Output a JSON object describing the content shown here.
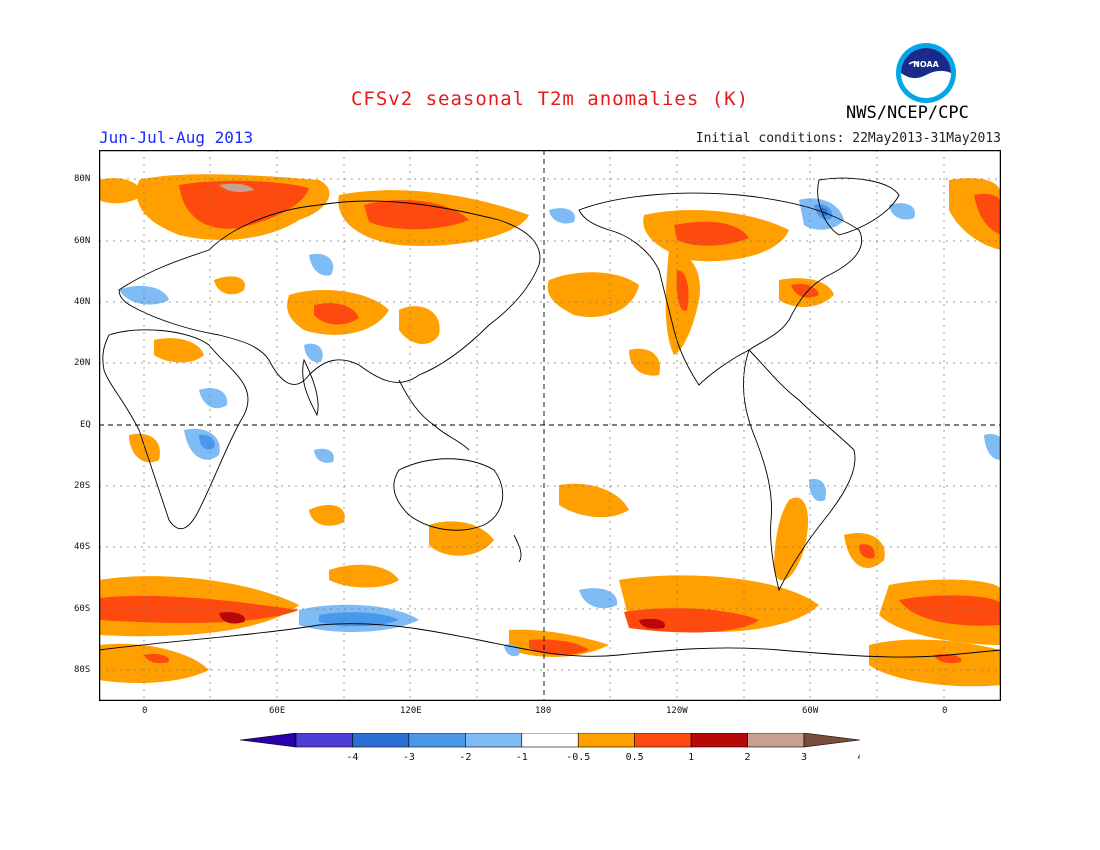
{
  "title": "CFSv2 seasonal T2m anomalies (K)",
  "period": "Jun-Jul-Aug 2013",
  "initial_conditions": "Initial conditions: 22May2013-31May2013",
  "agency": "NWS/NCEP/CPC",
  "logo_text": "NOAA",
  "lat_ticks": [
    "80N",
    "60N",
    "40N",
    "20N",
    "EQ",
    "20S",
    "40S",
    "60S",
    "80S"
  ],
  "lon_ticks": [
    "0",
    "60E",
    "120E",
    "180",
    "120W",
    "60W",
    "0"
  ],
  "colorbar": {
    "labels": [
      "-4",
      "-3",
      "-2",
      "-1",
      "-0.5",
      "0.5",
      "1",
      "2",
      "3",
      "4"
    ],
    "colors": [
      "#2a00a8",
      "#4f3ed6",
      "#2b6fd6",
      "#4a98ea",
      "#7fbbf5",
      "#ffffff",
      "#ffa000",
      "#ff4a0f",
      "#b80707",
      "#c8a08f",
      "#7a4a3a"
    ]
  },
  "palette": {
    "warm_1": "#ffa000",
    "warm_2": "#ff4a0f",
    "warm_3": "#b80707",
    "warm_4": "#c8a08f",
    "cool_1": "#7fbbf5",
    "cool_2": "#4a98ea",
    "cool_3": "#2b6fd6",
    "cool_4": "#2a00a8",
    "title_red": "#e8191b",
    "period_blue": "#1a2cff"
  }
}
